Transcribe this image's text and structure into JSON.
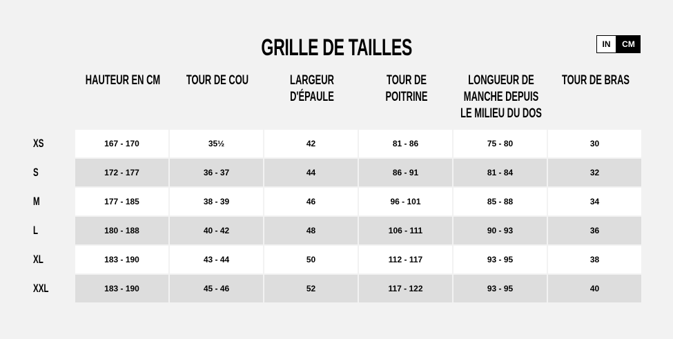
{
  "title": "GRILLE DE TAILLES",
  "units": {
    "in": "IN",
    "cm": "CM",
    "selected": "CM"
  },
  "headers": [
    "HAUTEUR EN CM",
    "TOUR DE COU",
    "LARGEUR D'ÉPAULE",
    "TOUR DE POITRINE",
    "LONGUEUR DE MANCHE DEPUIS LE MILIEU DU DOS",
    "TOUR DE BRAS"
  ],
  "rows": [
    {
      "size": "XS",
      "values": [
        "167 - 170",
        "35½",
        "42",
        "81 - 86",
        "75 - 80",
        "30"
      ]
    },
    {
      "size": "S",
      "values": [
        "172 - 177",
        "36 - 37",
        "44",
        "86 - 91",
        "81 - 84",
        "32"
      ]
    },
    {
      "size": "M",
      "values": [
        "177 - 185",
        "38 - 39",
        "46",
        "96 - 101",
        "85 - 88",
        "34"
      ]
    },
    {
      "size": "L",
      "values": [
        "180 - 188",
        "40 - 42",
        "48",
        "106 - 111",
        "90 - 93",
        "36"
      ]
    },
    {
      "size": "XL",
      "values": [
        "183 - 190",
        "43 - 44",
        "50",
        "112 - 117",
        "93 - 95",
        "38"
      ]
    },
    {
      "size": "XXL",
      "values": [
        "183 - 190",
        "45 - 46",
        "52",
        "117 - 122",
        "93 - 95",
        "40"
      ]
    }
  ]
}
